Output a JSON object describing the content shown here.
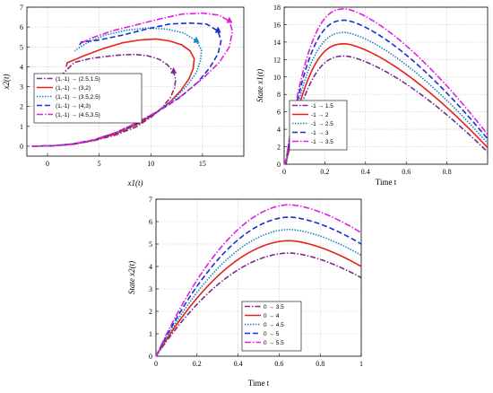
{
  "chart_data": [
    {
      "id": "phase",
      "type": "line",
      "xlabel": "x1(t)",
      "ylabel": "x2(t)",
      "xlim": [
        -2,
        19
      ],
      "ylim": [
        -0.5,
        7
      ],
      "xticks": [
        0,
        5,
        10,
        15
      ],
      "yticks": [
        0,
        1,
        2,
        3,
        4,
        5,
        6,
        7
      ],
      "grid": true,
      "legend": "center-left",
      "series": [
        {
          "name": "(1,-1) → (2.5,1.5)",
          "color": "#7b2a8e",
          "dash": "6,2,1.5,2",
          "x": [
            -1.5,
            0.5,
            2.5,
            4.5,
            6.5,
            8.5,
            10,
            11.1,
            11.9,
            12.3,
            12.4,
            12.2,
            11.6,
            10.8,
            9.7,
            8.5,
            7.2,
            5.7,
            4.2,
            2.6,
            1.2
          ],
          "y": [
            0,
            0.02,
            0.1,
            0.28,
            0.55,
            0.95,
            1.45,
            1.95,
            2.45,
            2.95,
            3.35,
            3.75,
            4.1,
            4.38,
            4.55,
            4.62,
            4.6,
            4.52,
            4.42,
            4.22,
            3.5
          ],
          "arrow": true
        },
        {
          "name": "(1,-1) → (3,2)",
          "color": "#e8201a",
          "dash": "",
          "x": [
            -1.5,
            0.5,
            2.5,
            4.5,
            6.5,
            8.5,
            10.3,
            11.8,
            12.9,
            13.7,
            14.1,
            14.2,
            13.8,
            13,
            11.8,
            10.5,
            9,
            7.2,
            5.3,
            3.5,
            1.9,
            1.8
          ],
          "y": [
            0,
            0.02,
            0.1,
            0.3,
            0.6,
            1.05,
            1.6,
            2.2,
            2.8,
            3.4,
            3.9,
            4.4,
            4.8,
            5.1,
            5.3,
            5.4,
            5.35,
            5.2,
            4.9,
            4.55,
            4.2,
            4
          ],
          "arrow": false
        },
        {
          "name": "(1,-1) → (3.5,2.5)",
          "color": "#1a86c2",
          "dash": "1.5,1.5",
          "x": [
            -1.5,
            0.5,
            2.5,
            4.5,
            6.5,
            8.5,
            10.5,
            12.2,
            13.5,
            14.4,
            14.8,
            14.9,
            14.4,
            13.2,
            11.5,
            9.7,
            7.7,
            5.6,
            3.8,
            2.6
          ],
          "y": [
            0,
            0.02,
            0.12,
            0.32,
            0.65,
            1.1,
            1.7,
            2.35,
            3.05,
            3.7,
            4.3,
            4.85,
            5.3,
            5.7,
            5.9,
            5.95,
            5.85,
            5.6,
            5.2,
            4.8
          ],
          "arrow": true
        },
        {
          "name": "(1,-1) → (4,3)",
          "color": "#1b2fcc",
          "dash": "6,3",
          "x": [
            -1.5,
            0.5,
            2.5,
            4.5,
            6.5,
            8.5,
            10.7,
            12.8,
            14.5,
            15.7,
            16.5,
            16.8,
            16.5,
            15.4,
            13.8,
            11.8,
            9.6,
            7.3,
            5,
            3.3,
            3.1
          ],
          "y": [
            0,
            0.02,
            0.12,
            0.32,
            0.66,
            1.12,
            1.75,
            2.45,
            3.2,
            3.95,
            4.65,
            5.3,
            5.8,
            6.15,
            6.2,
            6.15,
            5.9,
            5.6,
            5.35,
            5.25,
            5.1
          ],
          "arrow": true
        },
        {
          "name": "(1,-1) → (4.5,3.5)",
          "color": "#e21ee0",
          "dash": "7,2,1.5,2",
          "x": [
            -1.5,
            0.5,
            2.5,
            4.5,
            6.5,
            8.5,
            10.8,
            13,
            15,
            16.6,
            17.6,
            17.9,
            17.6,
            16.6,
            15,
            13,
            10.8,
            8.5,
            6.2,
            4.3,
            3.3
          ],
          "y": [
            0,
            0.02,
            0.12,
            0.33,
            0.67,
            1.15,
            1.8,
            2.55,
            3.4,
            4.2,
            5,
            5.8,
            6.3,
            6.6,
            6.7,
            6.65,
            6.4,
            6.1,
            5.8,
            5.45,
            5.2
          ],
          "arrow": true
        }
      ]
    },
    {
      "id": "x1state",
      "type": "line",
      "xlabel": "Time t",
      "ylabel": "State x1(t)",
      "xlim": [
        0,
        1
      ],
      "ylim": [
        0,
        18
      ],
      "xticks": [
        0,
        0.2,
        0.4,
        0.6,
        0.8
      ],
      "yticks": [
        0,
        2,
        4,
        6,
        8,
        10,
        12,
        14,
        16,
        18
      ],
      "grid": true,
      "legend": "lower-left",
      "series": [
        {
          "name": "-1 → 1.5",
          "color": "#7b2a8e",
          "dash": "6,2,1.5,2",
          "peak": 12.4,
          "start": -1,
          "end": 1.4
        },
        {
          "name": "-1 → 2",
          "color": "#e8201a",
          "dash": "",
          "peak": 13.8,
          "start": -1,
          "end": 1.9
        },
        {
          "name": "-1 → 2.5",
          "color": "#1a86c2",
          "dash": "1.5,1.5",
          "peak": 15.1,
          "start": -1,
          "end": 2.4
        },
        {
          "name": "-1 → 3",
          "color": "#1b2fcc",
          "dash": "6,3",
          "peak": 16.5,
          "start": -1,
          "end": 2.9
        },
        {
          "name": "-1 → 3.5",
          "color": "#e21ee0",
          "dash": "7,2,1.5,2",
          "peak": 17.8,
          "start": -1,
          "end": 3.4
        }
      ]
    },
    {
      "id": "x2state",
      "type": "line",
      "xlabel": "Time t",
      "ylabel": "State x2(t)",
      "xlim": [
        0,
        1
      ],
      "ylim": [
        0,
        7
      ],
      "xticks": [
        0,
        0.2,
        0.4,
        0.6,
        0.8,
        1
      ],
      "yticks": [
        0,
        1,
        2,
        3,
        4,
        5,
        6,
        7
      ],
      "grid": true,
      "legend": "lower-center",
      "series": [
        {
          "name": "0 → 3.5",
          "color": "#7b2a8e",
          "dash": "6,2,1.5,2",
          "peak": 4.6,
          "end": 3.5
        },
        {
          "name": "0 → 4",
          "color": "#e8201a",
          "dash": "",
          "peak": 5.15,
          "end": 4.0
        },
        {
          "name": "0 → 4.5",
          "color": "#1a86c2",
          "dash": "1.5,1.5",
          "peak": 5.65,
          "end": 4.5
        },
        {
          "name": "0 → 5",
          "color": "#1b2fcc",
          "dash": "6,3",
          "peak": 6.2,
          "end": 5.0
        },
        {
          "name": "0 → 5.5",
          "color": "#e21ee0",
          "dash": "7,2,1.5,2",
          "peak": 6.75,
          "end": 5.5
        }
      ]
    }
  ]
}
